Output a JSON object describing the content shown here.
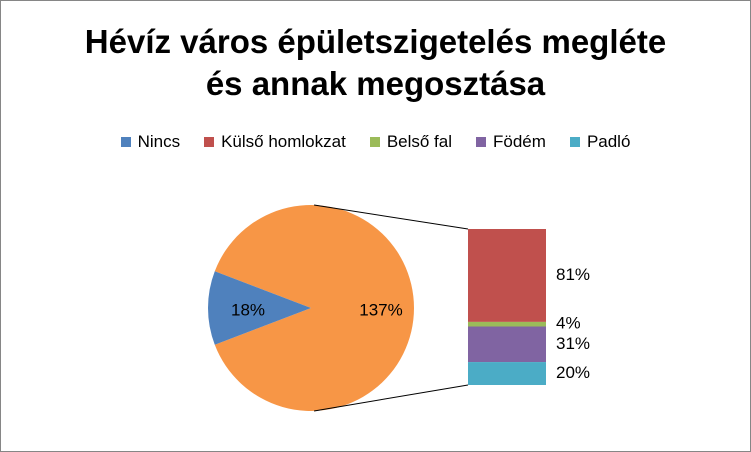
{
  "chart_data": {
    "type": "pie",
    "subtype": "bar-of-pie",
    "title_lines": [
      "Hévíz város épületszigetelés megléte",
      "és annak megosztása"
    ],
    "legend_position": "top",
    "categories": [
      "Nincs",
      "Külső homlokzat",
      "Belső fal",
      "Födém",
      "Padló"
    ],
    "values": [
      18,
      81,
      4,
      31,
      20
    ],
    "labels": [
      "18%",
      "81%",
      "4%",
      "31%",
      "20%"
    ],
    "colors": [
      "#4F81BD",
      "#C0504D",
      "#9BBB59",
      "#8064A2",
      "#4BACC6"
    ],
    "other_slice": {
      "value": 137,
      "label": "137%",
      "color": "#F79646"
    }
  }
}
